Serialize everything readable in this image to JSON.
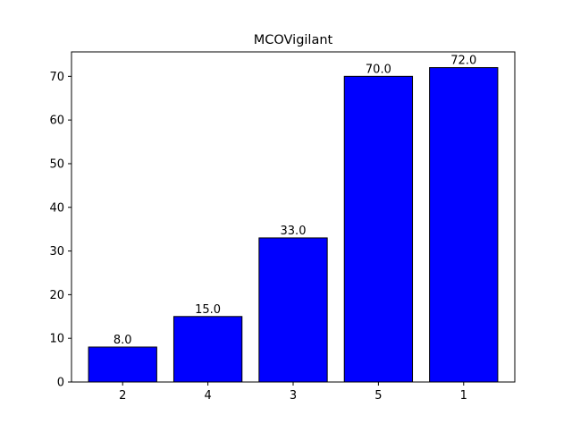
{
  "chart_data": {
    "type": "bar",
    "title": "MCOVigilant",
    "xlabel": "",
    "ylabel": "",
    "categories": [
      "2",
      "4",
      "3",
      "5",
      "1"
    ],
    "values": [
      8.0,
      15.0,
      33.0,
      70.0,
      72.0
    ],
    "data_labels": [
      "8.0",
      "15.0",
      "33.0",
      "70.0",
      "72.0"
    ],
    "ylim": [
      0,
      75.6
    ],
    "yticks": [
      0,
      10,
      20,
      30,
      40,
      50,
      60,
      70
    ],
    "grid": false,
    "legend": "none",
    "colors": {
      "bar_fill": "#0000ff",
      "bar_edge": "#000000",
      "axis": "#000000",
      "background": "#ffffff"
    }
  }
}
